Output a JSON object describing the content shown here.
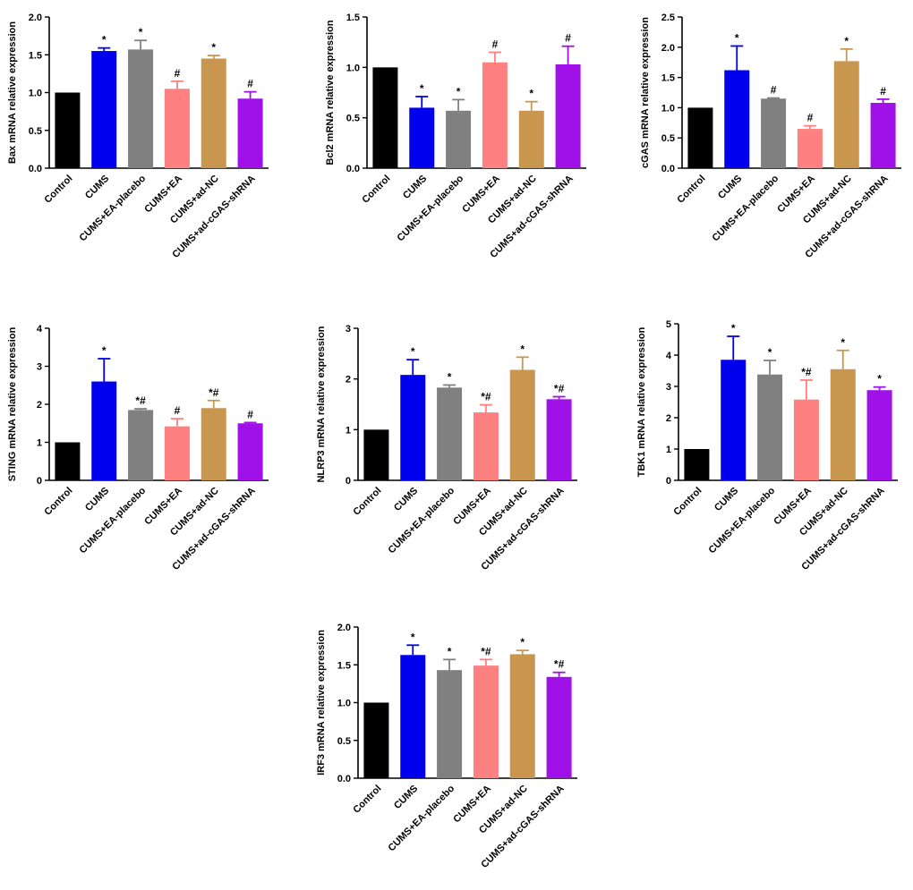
{
  "colors": {
    "Control": "#000000",
    "CUMS": "#0000ee",
    "CUMS+EA-placebo": "#808080",
    "CUMS+EA": "#ff8080",
    "CUMS+ad-NC": "#c8964f",
    "CUMS+ad-cGAS-shRNA": "#a010e8"
  },
  "chart_data": [
    {
      "type": "bar",
      "ylabel": "Bax mRNA relative expression",
      "categories": [
        "Control",
        "CUMS",
        "CUMS+EA-placebo",
        "CUMS+EA",
        "CUMS+ad-NC",
        "CUMS+ad-cGAS-shRNA"
      ],
      "values": [
        1.0,
        1.55,
        1.57,
        1.05,
        1.45,
        0.92
      ],
      "errors": [
        0,
        0.04,
        0.12,
        0.1,
        0.04,
        0.09
      ],
      "significance": [
        "",
        "*",
        "*",
        "#",
        "*",
        "#"
      ],
      "ylim": [
        0,
        2.0
      ],
      "yticks": [
        "0.0",
        "0.5",
        "1.0",
        "1.5",
        "2.0"
      ]
    },
    {
      "type": "bar",
      "ylabel": "Bcl2 mRNA relative expression",
      "categories": [
        "Control",
        "CUMS",
        "CUMS+EA-placebo",
        "CUMS+EA",
        "CUMS+ad-NC",
        "CUMS+ad-cGAS-shRNA"
      ],
      "values": [
        1.0,
        0.6,
        0.57,
        1.05,
        0.57,
        1.03
      ],
      "errors": [
        0,
        0.11,
        0.11,
        0.1,
        0.09,
        0.18
      ],
      "significance": [
        "",
        "*",
        "*",
        "#",
        "*",
        "#"
      ],
      "ylim": [
        0,
        1.5
      ],
      "yticks": [
        "0.0",
        "0.5",
        "1.0",
        "1.5"
      ]
    },
    {
      "type": "bar",
      "ylabel": "cGAS mRNA relative expression",
      "categories": [
        "Control",
        "CUMS",
        "CUMS+EA-placebo",
        "CUMS+EA",
        "CUMS+ad-NC",
        "CUMS+ad-cGAS-shRNA"
      ],
      "values": [
        1.0,
        1.62,
        1.15,
        0.65,
        1.77,
        1.08
      ],
      "errors": [
        0,
        0.4,
        0.01,
        0.05,
        0.2,
        0.06
      ],
      "significance": [
        "",
        "*",
        "#",
        "#",
        "*",
        "#"
      ],
      "ylim": [
        0,
        2.5
      ],
      "yticks": [
        "0.0",
        "0.5",
        "1.0",
        "1.5",
        "2.0",
        "2.5"
      ]
    },
    {
      "type": "bar",
      "ylabel": "STING mRNA relative expression",
      "categories": [
        "Control",
        "CUMS",
        "CUMS+EA-placebo",
        "CUMS+EA",
        "CUMS+ad-NC",
        "CUMS+ad-cGAS-shRNA"
      ],
      "values": [
        1.0,
        2.6,
        1.85,
        1.42,
        1.9,
        1.5
      ],
      "errors": [
        0,
        0.6,
        0.03,
        0.2,
        0.2,
        0.02
      ],
      "significance": [
        "",
        "*",
        "*#",
        "#",
        "*#",
        "#"
      ],
      "ylim": [
        0,
        4
      ],
      "yticks": [
        "0",
        "1",
        "2",
        "3",
        "4"
      ]
    },
    {
      "type": "bar",
      "ylabel": "NLRP3 mRNA relative expression",
      "categories": [
        "Control",
        "CUMS",
        "CUMS+EA-placebo",
        "CUMS+EA",
        "CUMS+ad-NC",
        "CUMS+ad-cGAS-shRNA"
      ],
      "values": [
        1.0,
        2.08,
        1.83,
        1.34,
        2.18,
        1.6
      ],
      "errors": [
        0,
        0.3,
        0.05,
        0.15,
        0.25,
        0.05
      ],
      "significance": [
        "",
        "*",
        "*",
        "*#",
        "*",
        "*#"
      ],
      "ylim": [
        0,
        3
      ],
      "yticks": [
        "0",
        "1",
        "2",
        "3"
      ]
    },
    {
      "type": "bar",
      "ylabel": "TBK1 mRNA relative expression",
      "categories": [
        "Control",
        "CUMS",
        "CUMS+EA-placebo",
        "CUMS+EA",
        "CUMS+ad-NC",
        "CUMS+ad-cGAS-shRNA"
      ],
      "values": [
        1.0,
        3.85,
        3.38,
        2.58,
        3.55,
        2.88
      ],
      "errors": [
        0,
        0.75,
        0.45,
        0.62,
        0.6,
        0.1
      ],
      "significance": [
        "",
        "*",
        "*",
        "*#",
        "*",
        "*"
      ],
      "ylim": [
        0,
        5
      ],
      "yticks": [
        "0",
        "1",
        "2",
        "3",
        "4",
        "5"
      ]
    },
    {
      "type": "bar",
      "ylabel": "IRF3 mRNA relative expression",
      "categories": [
        "Control",
        "CUMS",
        "CUMS+EA-placebo",
        "CUMS+EA",
        "CUMS+ad-NC",
        "CUMS+ad-cGAS-shRNA"
      ],
      "values": [
        1.0,
        1.63,
        1.43,
        1.49,
        1.64,
        1.34
      ],
      "errors": [
        0,
        0.13,
        0.14,
        0.08,
        0.05,
        0.06
      ],
      "significance": [
        "",
        "*",
        "*",
        "*#",
        "*",
        "*#"
      ],
      "ylim": [
        0,
        2.0
      ],
      "yticks": [
        "0.0",
        "0.5",
        "1.0",
        "1.5",
        "2.0"
      ]
    }
  ]
}
